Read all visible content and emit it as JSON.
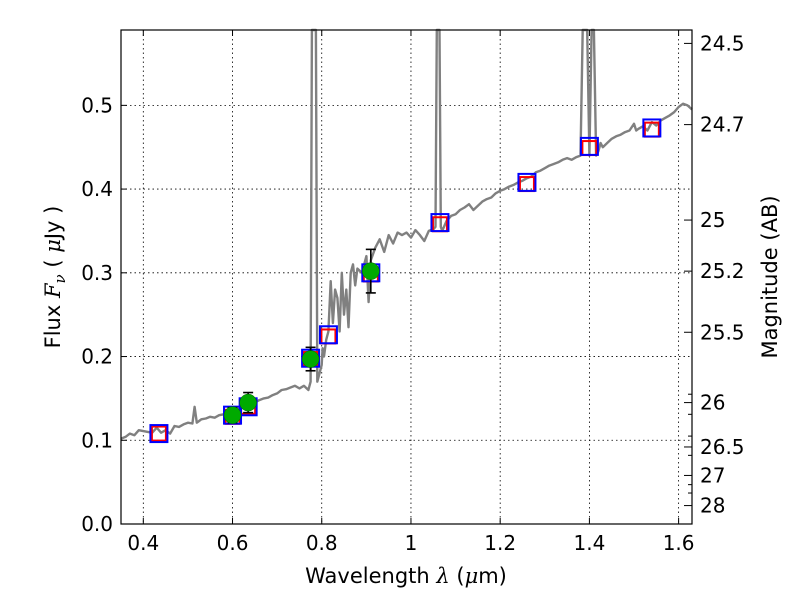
{
  "chart_data": {
    "type": "scatter",
    "xlabel": "Wavelength λ (μm)",
    "xlabel_parts": {
      "pre": "Wavelength ",
      "lambda": "λ",
      "mid": " (",
      "mu": "μ",
      "unit": "m)"
    },
    "ylabel": "Flux F_ν (μJy)",
    "ylabel_parts": {
      "flux": "Flux ",
      "F": "F",
      "nu": "ν",
      "open": " ( ",
      "mu": "μ",
      "unit": "Jy )"
    },
    "ylabel_right": "Magnitude (AB)",
    "xlim": [
      0.35,
      1.63
    ],
    "ylim": [
      0.0,
      0.59
    ],
    "grid": true,
    "x_ticks": [
      {
        "value": 0.4,
        "label": "0.4"
      },
      {
        "value": 0.6,
        "label": "0.6"
      },
      {
        "value": 0.8,
        "label": "0.8"
      },
      {
        "value": 1.0,
        "label": "1"
      },
      {
        "value": 1.2,
        "label": "1.2"
      },
      {
        "value": 1.4,
        "label": "1.4"
      },
      {
        "value": 1.6,
        "label": "1.6"
      }
    ],
    "y_ticks": [
      {
        "value": 0.0,
        "label": "0.0"
      },
      {
        "value": 0.1,
        "label": "0.1"
      },
      {
        "value": 0.2,
        "label": "0.2"
      },
      {
        "value": 0.3,
        "label": "0.3"
      },
      {
        "value": 0.4,
        "label": "0.4"
      },
      {
        "value": 0.5,
        "label": "0.5"
      }
    ],
    "right_ticks": [
      {
        "flux": 0.574,
        "label": "24.5"
      },
      {
        "flux": 0.477,
        "label": "24.7"
      },
      {
        "flux": 0.363,
        "label": "25"
      },
      {
        "flux": 0.302,
        "label": "25.2"
      },
      {
        "flux": 0.229,
        "label": "25.5"
      },
      {
        "flux": 0.145,
        "label": "26"
      },
      {
        "flux": 0.092,
        "label": "26.5"
      },
      {
        "flux": 0.058,
        "label": "27"
      },
      {
        "flux": 0.022,
        "label": "28"
      }
    ],
    "right_minor_ticks": [
      0.155,
      0.131,
      0.105,
      0.082,
      0.047,
      0.037
    ],
    "series": [
      {
        "name": "model spectrum",
        "kind": "line",
        "color": "#808080",
        "x": [
          0.35,
          0.36,
          0.37,
          0.38,
          0.39,
          0.4,
          0.41,
          0.42,
          0.43,
          0.44,
          0.45,
          0.46,
          0.47,
          0.48,
          0.49,
          0.5,
          0.51,
          0.515,
          0.52,
          0.525,
          0.53,
          0.54,
          0.55,
          0.56,
          0.57,
          0.58,
          0.59,
          0.6,
          0.61,
          0.62,
          0.63,
          0.64,
          0.65,
          0.66,
          0.67,
          0.68,
          0.69,
          0.7,
          0.71,
          0.72,
          0.73,
          0.74,
          0.75,
          0.76,
          0.77,
          0.775,
          0.778,
          0.781,
          0.784,
          0.787,
          0.79,
          0.8,
          0.802,
          0.805,
          0.81,
          0.815,
          0.82,
          0.825,
          0.83,
          0.835,
          0.84,
          0.845,
          0.85,
          0.855,
          0.86,
          0.865,
          0.87,
          0.875,
          0.88,
          0.89,
          0.9,
          0.905,
          0.91,
          0.92,
          0.93,
          0.94,
          0.95,
          0.96,
          0.97,
          0.98,
          0.99,
          1.0,
          1.01,
          1.02,
          1.03,
          1.04,
          1.05,
          1.055,
          1.058,
          1.061,
          1.064,
          1.067,
          1.07,
          1.08,
          1.09,
          1.1,
          1.11,
          1.12,
          1.13,
          1.14,
          1.15,
          1.16,
          1.17,
          1.18,
          1.19,
          1.2,
          1.21,
          1.22,
          1.23,
          1.24,
          1.25,
          1.26,
          1.27,
          1.28,
          1.29,
          1.3,
          1.31,
          1.32,
          1.33,
          1.34,
          1.35,
          1.36,
          1.37,
          1.38,
          1.385,
          1.39,
          1.395,
          1.4,
          1.405,
          1.41,
          1.415,
          1.42,
          1.425,
          1.43,
          1.44,
          1.45,
          1.46,
          1.47,
          1.48,
          1.49,
          1.5,
          1.505,
          1.51,
          1.52,
          1.53,
          1.54,
          1.55,
          1.56,
          1.57,
          1.58,
          1.59,
          1.6,
          1.61,
          1.62,
          1.63
        ],
        "y": [
          0.102,
          0.104,
          0.108,
          0.106,
          0.112,
          0.111,
          0.11,
          0.109,
          0.115,
          0.109,
          0.112,
          0.108,
          0.117,
          0.116,
          0.119,
          0.121,
          0.12,
          0.14,
          0.121,
          0.123,
          0.125,
          0.126,
          0.128,
          0.127,
          0.13,
          0.131,
          0.133,
          0.134,
          0.136,
          0.139,
          0.14,
          0.141,
          0.145,
          0.148,
          0.15,
          0.151,
          0.154,
          0.156,
          0.16,
          0.161,
          0.163,
          0.165,
          0.162,
          0.165,
          0.16,
          0.17,
          0.59,
          0.59,
          0.59,
          0.59,
          0.17,
          0.19,
          0.21,
          0.2,
          0.22,
          0.23,
          0.29,
          0.24,
          0.28,
          0.27,
          0.23,
          0.3,
          0.25,
          0.28,
          0.235,
          0.3,
          0.31,
          0.285,
          0.305,
          0.3,
          0.32,
          0.265,
          0.315,
          0.33,
          0.34,
          0.325,
          0.345,
          0.335,
          0.348,
          0.345,
          0.348,
          0.342,
          0.351,
          0.345,
          0.338,
          0.35,
          0.352,
          0.355,
          0.59,
          0.59,
          0.59,
          0.355,
          0.35,
          0.362,
          0.368,
          0.37,
          0.375,
          0.378,
          0.382,
          0.375,
          0.38,
          0.385,
          0.388,
          0.39,
          0.395,
          0.398,
          0.4,
          0.403,
          0.405,
          0.408,
          0.41,
          0.413,
          0.415,
          0.42,
          0.422,
          0.425,
          0.428,
          0.43,
          0.432,
          0.435,
          0.437,
          0.435,
          0.438,
          0.44,
          0.59,
          0.59,
          0.59,
          0.44,
          0.59,
          0.59,
          0.44,
          0.445,
          0.455,
          0.45,
          0.455,
          0.46,
          0.463,
          0.465,
          0.468,
          0.47,
          0.478,
          0.47,
          0.472,
          0.475,
          0.47,
          0.48,
          0.476,
          0.482,
          0.485,
          0.488,
          0.492,
          0.498,
          0.502,
          0.5,
          0.495
        ]
      },
      {
        "name": "model photometry (red)",
        "kind": "marker-square",
        "color": "#ff0000",
        "x": [
          0.435,
          0.6,
          0.635,
          0.775,
          0.815,
          0.91,
          1.065,
          1.26,
          1.4,
          1.54
        ],
        "y": [
          0.108,
          0.128,
          0.14,
          0.197,
          0.224,
          0.298,
          0.358,
          0.406,
          0.449,
          0.471
        ]
      },
      {
        "name": "model photometry (blue)",
        "kind": "marker-square",
        "color": "#0000ff",
        "x": [
          0.435,
          0.6,
          0.635,
          0.775,
          0.815,
          0.91,
          1.065,
          1.26,
          1.4,
          1.54
        ],
        "y": [
          0.108,
          0.13,
          0.14,
          0.198,
          0.226,
          0.3,
          0.36,
          0.408,
          0.451,
          0.473
        ]
      },
      {
        "name": "observed photometry",
        "kind": "marker-circle",
        "color": "#00aa00",
        "error_color": "#000000",
        "x": [
          0.6,
          0.635,
          0.775,
          0.91
        ],
        "y": [
          0.13,
          0.145,
          0.197,
          0.302
        ],
        "yerr": [
          0.009,
          0.012,
          0.014,
          0.026
        ]
      }
    ]
  }
}
